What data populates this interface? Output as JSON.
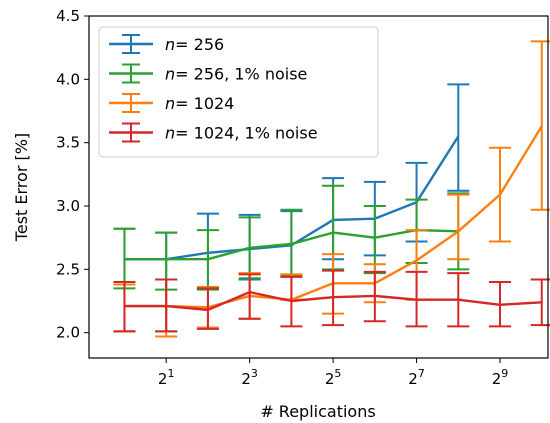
{
  "chart_data": {
    "type": "line",
    "title": "",
    "xlabel": "# Replications",
    "ylabel": "Test Error [%]",
    "x_scale": "log2",
    "x_tick_labels": [
      {
        "base": "2",
        "exp": "1",
        "value": 2
      },
      {
        "base": "2",
        "exp": "3",
        "value": 8
      },
      {
        "base": "2",
        "exp": "5",
        "value": 32
      },
      {
        "base": "2",
        "exp": "7",
        "value": 128
      },
      {
        "base": "2",
        "exp": "9",
        "value": 512
      }
    ],
    "y_ticks": [
      "2.0",
      "2.5",
      "3.0",
      "3.5",
      "4.0",
      "4.5"
    ],
    "ylim": [
      1.8,
      4.5
    ],
    "xlim_log2": [
      -0.85,
      10.15
    ],
    "grid": false,
    "legend_position": "top-left",
    "series": [
      {
        "name": "n= 256",
        "name_italic": "n",
        "name_rest": "= 256",
        "color": "#1f77b4",
        "x": [
          1,
          2,
          4,
          8,
          16,
          32,
          64,
          128,
          256
        ],
        "y": [
          2.58,
          2.58,
          2.63,
          2.66,
          2.69,
          2.89,
          2.9,
          3.03,
          3.55
        ],
        "err_low": [
          2.01,
          2.01,
          2.36,
          2.42,
          2.45,
          2.58,
          2.61,
          2.72,
          3.12
        ],
        "err_high": [
          2.82,
          2.79,
          2.94,
          2.93,
          2.96,
          3.22,
          3.19,
          3.34,
          3.96
        ]
      },
      {
        "name": "n= 256, 1% noise",
        "name_italic": "n",
        "name_rest": "= 256, 1% noise",
        "color": "#2ca02c",
        "x": [
          1,
          2,
          4,
          8,
          16,
          32,
          64,
          128,
          256
        ],
        "y": [
          2.58,
          2.58,
          2.58,
          2.67,
          2.7,
          2.79,
          2.75,
          2.81,
          2.8
        ],
        "err_low": [
          2.35,
          2.34,
          2.34,
          2.43,
          2.45,
          2.5,
          2.47,
          2.55,
          2.5
        ],
        "err_high": [
          2.82,
          2.79,
          2.81,
          2.91,
          2.97,
          3.16,
          3.0,
          3.05,
          3.1
        ]
      },
      {
        "name": "n= 1024",
        "name_italic": "n",
        "name_rest": "= 1024",
        "color": "#ff7f0e",
        "x": [
          1,
          2,
          4,
          8,
          16,
          32,
          64,
          128,
          256,
          512,
          1024
        ],
        "y": [
          2.21,
          2.21,
          2.2,
          2.29,
          2.26,
          2.39,
          2.39,
          2.57,
          2.8,
          3.09,
          3.63
        ],
        "err_low": [
          2.01,
          1.97,
          2.04,
          2.11,
          2.26,
          2.15,
          2.24,
          2.26,
          2.58,
          2.72,
          2.97
        ],
        "err_high": [
          2.38,
          2.42,
          2.36,
          2.47,
          2.46,
          2.62,
          2.54,
          2.81,
          3.09,
          3.46,
          4.3
        ]
      },
      {
        "name": "n= 1024, 1% noise",
        "name_italic": "n",
        "name_rest": "= 1024, 1% noise",
        "color": "#d62728",
        "x": [
          1,
          2,
          4,
          8,
          16,
          32,
          64,
          128,
          256,
          512,
          1024
        ],
        "y": [
          2.21,
          2.21,
          2.18,
          2.32,
          2.25,
          2.28,
          2.29,
          2.26,
          2.26,
          2.22,
          2.24
        ],
        "err_low": [
          2.01,
          2.01,
          2.03,
          2.11,
          2.05,
          2.06,
          2.09,
          2.05,
          2.05,
          2.05,
          2.06
        ],
        "err_high": [
          2.4,
          2.42,
          2.35,
          2.46,
          2.44,
          2.49,
          2.48,
          2.48,
          2.47,
          2.4,
          2.42
        ]
      }
    ]
  }
}
